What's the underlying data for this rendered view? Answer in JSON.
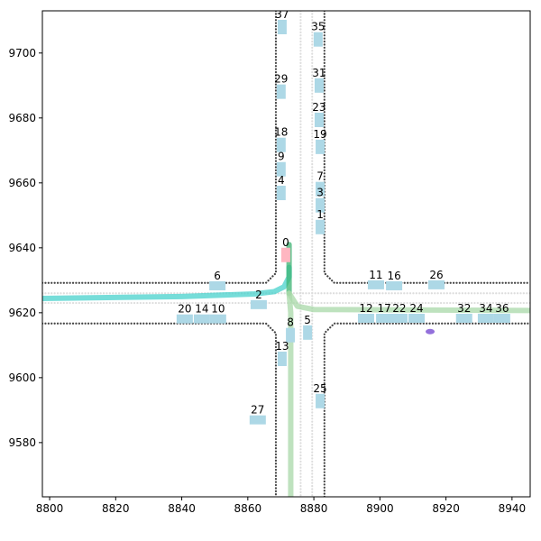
{
  "chart_data": {
    "type": "scene",
    "xlim": [
      8797.8,
      8945.5
    ],
    "ylim": [
      9563.3,
      9713
    ],
    "xticks": [
      8800,
      8820,
      8840,
      8860,
      8880,
      8900,
      8920,
      8940
    ],
    "yticks": [
      9580,
      9600,
      9620,
      9640,
      9660,
      9680,
      9700
    ],
    "road_edges": [
      {
        "color": "#444444",
        "x": [
          8797.8,
          8865.5,
          8868.5,
          8868.5
        ],
        "y": [
          9629.2,
          9629.2,
          9632.2,
          9713
        ]
      },
      {
        "color": "#444444",
        "x": [
          8797.8,
          8865.5,
          8868.5,
          8868.5
        ],
        "y": [
          9616.7,
          9616.7,
          9613.7,
          9563.3
        ]
      },
      {
        "color": "#444444",
        "x": [
          8883.2,
          8883.2,
          8886.2,
          8945.5
        ],
        "y": [
          9713,
          9632.2,
          9629.2,
          9629.2
        ]
      },
      {
        "color": "#444444",
        "x": [
          8883.2,
          8883.2,
          8886.2,
          8945.5
        ],
        "y": [
          9563.3,
          9613.7,
          9616.7,
          9616.7
        ]
      },
      {
        "color": "#dddddd",
        "x": [
          8876,
          8876
        ],
        "y": [
          9713,
          9563.3
        ]
      },
      {
        "color": "#dddddd",
        "x": [
          8797.8,
          8945.5
        ],
        "y": [
          9623,
          9623
        ]
      },
      {
        "color": "#dddddd",
        "x": [
          8879.5,
          8879.5
        ],
        "y": [
          9713,
          9563.3
        ]
      },
      {
        "color": "#dddddd",
        "x": [
          8797.8,
          8945.5
        ],
        "y": [
          9626,
          9626
        ]
      }
    ],
    "trajectories": [
      {
        "color": "#48d1cc",
        "x": [
          8797.8,
          8840,
          8862,
          8868,
          8871,
          8872.5,
          8872.5
        ],
        "y": [
          9624.4,
          9625,
          9625.8,
          9626.5,
          9628,
          9631,
          9634
        ]
      },
      {
        "color": "#3cb371",
        "x": [
          8872.5,
          8872.5,
          8872.5
        ],
        "y": [
          9641,
          9632,
          9626
        ]
      },
      {
        "color": "#a8d8a8",
        "x": [
          8872.5,
          8875,
          8880,
          8945.5
        ],
        "y": [
          9626,
          9622,
          9621,
          9620.7
        ]
      },
      {
        "color": "#a8d8a8",
        "x": [
          8872.5,
          8873,
          8873,
          8873
        ],
        "y": [
          9626,
          9620,
          9600,
          9563.3
        ]
      }
    ],
    "marker": {
      "color": "#9370db",
      "x": 8915.2,
      "y": 9614.2
    },
    "vehicles": [
      {
        "label": "37",
        "x": 8870.4,
        "y": 9708,
        "orientation": "vertical",
        "color": "#add8e6"
      },
      {
        "label": "35",
        "x": 8881.3,
        "y": 9704.2,
        "orientation": "vertical",
        "color": "#add8e6"
      },
      {
        "label": "29",
        "x": 8870.1,
        "y": 9688.1,
        "orientation": "vertical",
        "color": "#add8e6"
      },
      {
        "label": "31",
        "x": 8881.6,
        "y": 9690,
        "orientation": "vertical",
        "color": "#add8e6"
      },
      {
        "label": "23",
        "x": 8881.6,
        "y": 9679.4,
        "orientation": "vertical",
        "color": "#add8e6"
      },
      {
        "label": "18",
        "x": 8870.1,
        "y": 9671.7,
        "orientation": "vertical",
        "color": "#add8e6"
      },
      {
        "label": "19",
        "x": 8881.9,
        "y": 9671.1,
        "orientation": "vertical",
        "color": "#add8e6"
      },
      {
        "label": "9",
        "x": 8870.1,
        "y": 9664.2,
        "orientation": "vertical",
        "color": "#add8e6"
      },
      {
        "label": "7",
        "x": 8881.9,
        "y": 9658.1,
        "orientation": "vertical",
        "color": "#add8e6"
      },
      {
        "label": "4",
        "x": 8870.1,
        "y": 9656.9,
        "orientation": "vertical",
        "color": "#add8e6"
      },
      {
        "label": "3",
        "x": 8881.9,
        "y": 9653.1,
        "orientation": "vertical",
        "color": "#add8e6"
      },
      {
        "label": "1",
        "x": 8881.9,
        "y": 9646.4,
        "orientation": "vertical",
        "color": "#add8e6"
      },
      {
        "label": "0",
        "x": 8871.5,
        "y": 9637.8,
        "orientation": "vertical",
        "color": "#ffb6c1"
      },
      {
        "label": "6",
        "x": 8850.8,
        "y": 9628.3,
        "orientation": "horizontal",
        "color": "#add8e6"
      },
      {
        "label": "11",
        "x": 8898.8,
        "y": 9628.6,
        "orientation": "horizontal",
        "color": "#add8e6"
      },
      {
        "label": "16",
        "x": 8904.3,
        "y": 9628.3,
        "orientation": "horizontal",
        "color": "#add8e6"
      },
      {
        "label": "26",
        "x": 8917.1,
        "y": 9628.6,
        "orientation": "horizontal",
        "color": "#add8e6"
      },
      {
        "label": "2",
        "x": 8863.3,
        "y": 9622.5,
        "orientation": "horizontal",
        "color": "#add8e6"
      },
      {
        "label": "20",
        "x": 8840.9,
        "y": 9618.1,
        "orientation": "horizontal",
        "color": "#add8e6"
      },
      {
        "label": "14",
        "x": 8846.1,
        "y": 9618.1,
        "orientation": "horizontal",
        "color": "#add8e6"
      },
      {
        "label": "10",
        "x": 8851.0,
        "y": 9618.1,
        "orientation": "horizontal",
        "color": "#add8e6"
      },
      {
        "label": "12",
        "x": 8895.8,
        "y": 9618.3,
        "orientation": "horizontal",
        "color": "#add8e6"
      },
      {
        "label": "17",
        "x": 8901.3,
        "y": 9618.3,
        "orientation": "horizontal",
        "color": "#add8e6"
      },
      {
        "label": "22",
        "x": 8905.9,
        "y": 9618.3,
        "orientation": "horizontal",
        "color": "#add8e6"
      },
      {
        "label": "24",
        "x": 8911.1,
        "y": 9618.3,
        "orientation": "horizontal",
        "color": "#add8e6"
      },
      {
        "label": "32",
        "x": 8925.5,
        "y": 9618.3,
        "orientation": "horizontal",
        "color": "#add8e6"
      },
      {
        "label": "34",
        "x": 8932.1,
        "y": 9618.3,
        "orientation": "horizontal",
        "color": "#add8e6"
      },
      {
        "label": "36",
        "x": 8937.0,
        "y": 9618.3,
        "orientation": "horizontal",
        "color": "#add8e6"
      },
      {
        "label": "8",
        "x": 8872.9,
        "y": 9613.1,
        "orientation": "vertical",
        "color": "#add8e6"
      },
      {
        "label": "5",
        "x": 8878.1,
        "y": 9613.9,
        "orientation": "vertical",
        "color": "#add8e6"
      },
      {
        "label": "13",
        "x": 8870.4,
        "y": 9605.8,
        "orientation": "vertical",
        "color": "#add8e6"
      },
      {
        "label": "25",
        "x": 8881.9,
        "y": 9592.8,
        "orientation": "vertical",
        "color": "#add8e6"
      },
      {
        "label": "27",
        "x": 8863.0,
        "y": 9587.0,
        "orientation": "horizontal",
        "color": "#add8e6"
      }
    ]
  }
}
